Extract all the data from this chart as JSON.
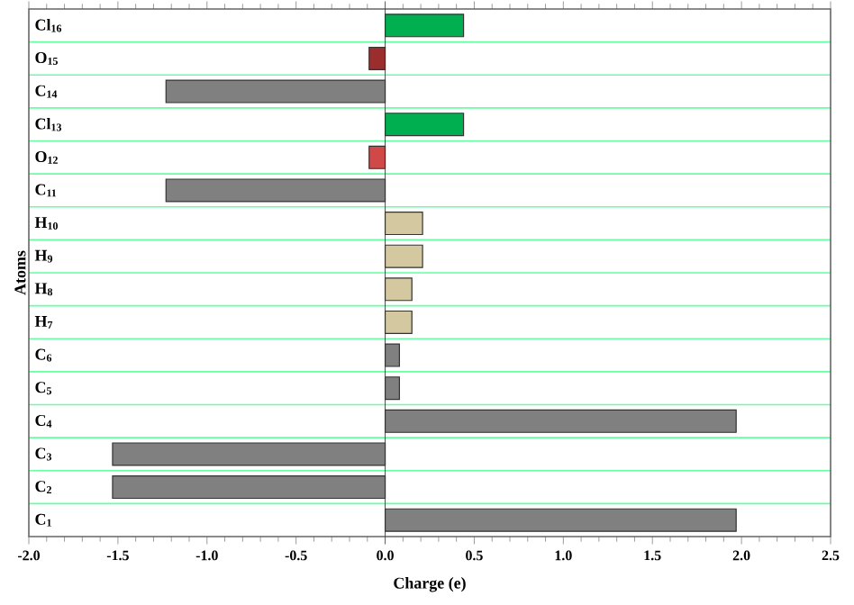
{
  "chart_data": {
    "type": "bar",
    "orientation": "horizontal",
    "xlabel": "Charge (e)",
    "ylabel": "Atoms",
    "categories": [
      "Cl$_{16}$",
      "O$_{15}$",
      "C$_{14}$",
      "Cl$_{13}$",
      "O$_{12}$",
      "C$_{11}$",
      "H$_{10}$",
      "H$_{9}$",
      "H$_{8}$",
      "H$_{7}$",
      "C$_{6}$",
      "C$_{5}$",
      "C$_{4}$",
      "C$_{3}$",
      "C$_{2}$",
      "C$_{1}$"
    ],
    "values": [
      0.44,
      -0.09,
      -1.23,
      0.44,
      -0.09,
      -1.23,
      0.21,
      0.21,
      0.15,
      0.15,
      0.08,
      0.08,
      1.97,
      -1.53,
      -1.53,
      1.97
    ],
    "colors": [
      "#00b050",
      "#9b2d2d",
      "#808080",
      "#00b050",
      "#d04848",
      "#808080",
      "#d4c8a0",
      "#d4c8a0",
      "#d4c8a0",
      "#d4c8a0",
      "#808080",
      "#808080",
      "#808080",
      "#808080",
      "#808080",
      "#808080"
    ],
    "xlim": [
      -2.0,
      2.5
    ],
    "xticks": [
      {
        "value": -2.0,
        "label": "-2.0"
      },
      {
        "value": -1.5,
        "label": "-1.5"
      },
      {
        "value": -1.0,
        "label": "-1.0"
      },
      {
        "value": -0.5,
        "label": "-0.5"
      },
      {
        "value": 0.0,
        "label": "0.0"
      },
      {
        "value": 0.5,
        "label": "0.5"
      },
      {
        "value": 1.0,
        "label": "1.0"
      },
      {
        "value": 1.5,
        "label": "1.5"
      },
      {
        "value": 2.0,
        "label": "2.0"
      },
      {
        "value": 2.5,
        "label": "2.5"
      }
    ],
    "grid": "y"
  }
}
